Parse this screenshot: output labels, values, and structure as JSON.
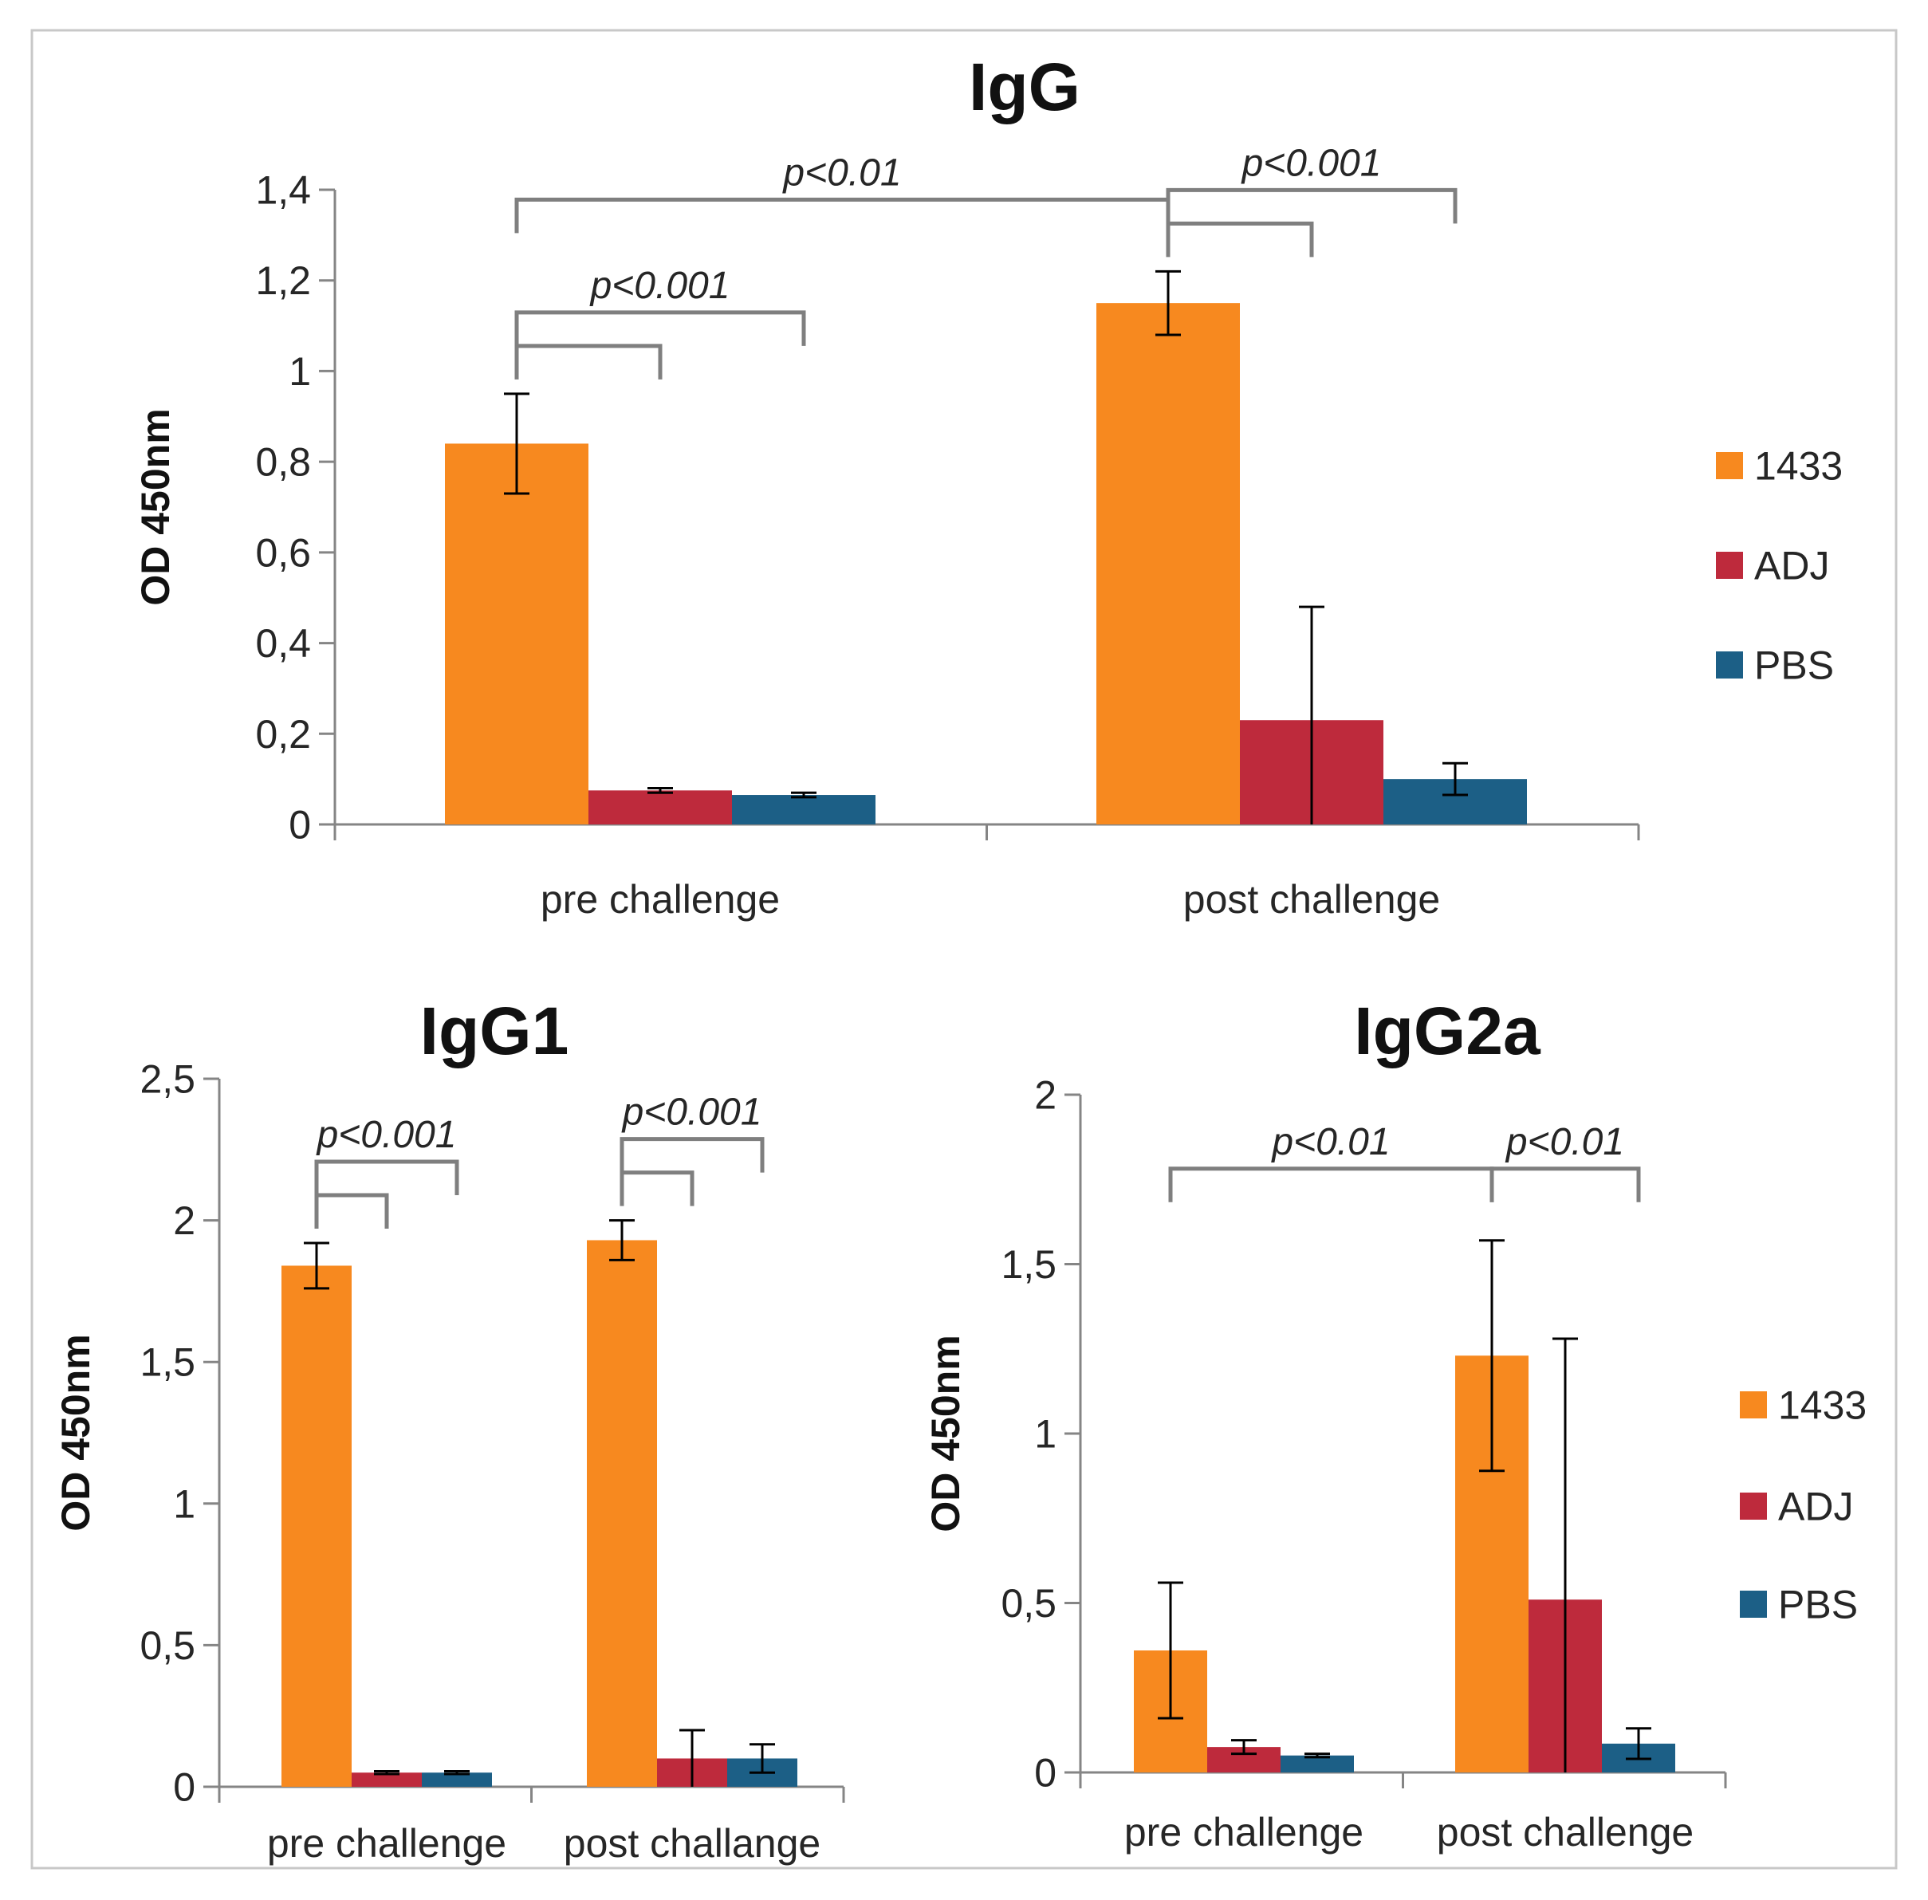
{
  "colors": {
    "1433": "#F7891F",
    "ADJ": "#BE2A3C",
    "PBS": "#1C5F86"
  },
  "chart_data": [
    {
      "type": "bar",
      "title": "IgG",
      "ylabel": "OD 450nm",
      "xlabel": "",
      "ylim": [
        0,
        1.4
      ],
      "yticks": [
        "0",
        "0,2",
        "0,4",
        "0,6",
        "0,8",
        "1",
        "1,2",
        "1,4"
      ],
      "ytick_values": [
        0,
        0.2,
        0.4,
        0.6,
        0.8,
        1.0,
        1.2,
        1.4
      ],
      "categories": [
        "pre challenge",
        "post challenge"
      ],
      "legend": "right",
      "series": [
        {
          "name": "1433",
          "values": [
            0.84,
            1.15
          ],
          "errors": [
            0.11,
            0.07
          ]
        },
        {
          "name": "ADJ",
          "values": [
            0.075,
            0.23
          ],
          "errors": [
            0.005,
            0.25
          ]
        },
        {
          "name": "PBS",
          "values": [
            0.065,
            0.1
          ],
          "errors": [
            0.005,
            0.035
          ]
        }
      ],
      "annotations": [
        {
          "text": "p<0.001",
          "type": "nested",
          "category": 0
        },
        {
          "text": "p<0.01",
          "type": "between",
          "from_category": 0,
          "to_category": 1
        },
        {
          "text": "p<0.001",
          "type": "nested",
          "category": 1
        }
      ]
    },
    {
      "type": "bar",
      "title": "IgG1",
      "ylabel": "OD 450nm",
      "xlabel": "",
      "ylim": [
        0,
        2.5
      ],
      "yticks": [
        "0",
        "0,5",
        "1",
        "1,5",
        "2",
        "2,5"
      ],
      "ytick_values": [
        0,
        0.5,
        1.0,
        1.5,
        2.0,
        2.5
      ],
      "categories": [
        "pre challenge",
        "post challange"
      ],
      "legend": "none",
      "series": [
        {
          "name": "1433",
          "values": [
            1.84,
            1.93
          ],
          "errors": [
            0.08,
            0.07
          ]
        },
        {
          "name": "ADJ",
          "values": [
            0.05,
            0.1
          ],
          "errors": [
            0.005,
            0.1
          ]
        },
        {
          "name": "PBS",
          "values": [
            0.05,
            0.1
          ],
          "errors": [
            0.005,
            0.05
          ]
        }
      ],
      "annotations": [
        {
          "text": "p<0.001",
          "type": "nested",
          "category": 0
        },
        {
          "text": "p<0.001",
          "type": "nested",
          "category": 1
        }
      ]
    },
    {
      "type": "bar",
      "title": "IgG2a",
      "ylabel": "OD 450nm",
      "xlabel": "",
      "ylim": [
        0,
        2
      ],
      "yticks": [
        "0",
        "0,5",
        "1",
        "1,5",
        "2"
      ],
      "ytick_values": [
        0,
        0.5,
        1.0,
        1.5,
        2.0
      ],
      "categories": [
        "pre challenge",
        "post challenge"
      ],
      "legend": "right",
      "series": [
        {
          "name": "1433",
          "values": [
            0.36,
            1.23
          ],
          "errors": [
            0.2,
            0.34
          ]
        },
        {
          "name": "ADJ",
          "values": [
            0.075,
            0.51
          ],
          "errors": [
            0.02,
            0.77
          ]
        },
        {
          "name": "PBS",
          "values": [
            0.05,
            0.085
          ],
          "errors": [
            0.005,
            0.045
          ]
        }
      ],
      "annotations": [
        {
          "text": "p<0.01",
          "type": "between",
          "from_category": 0,
          "to_category": 1
        },
        {
          "text": "p<0.01",
          "type": "single",
          "category": 1
        }
      ]
    }
  ]
}
